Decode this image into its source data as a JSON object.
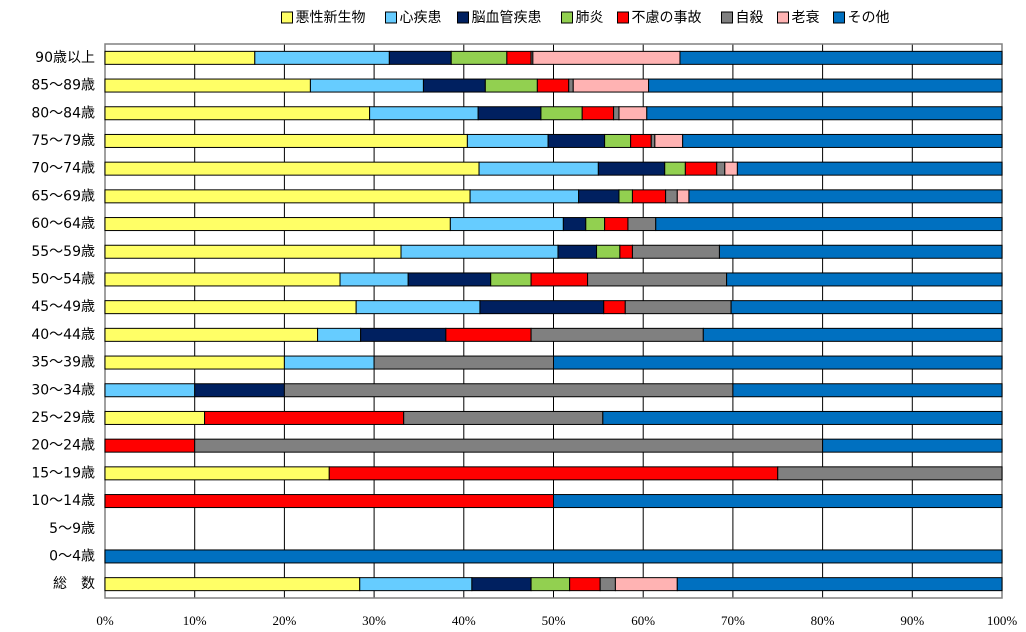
{
  "chart_data": {
    "type": "stacked-bar-horizontal",
    "categories": [
      "90歳以上",
      "85～89歳",
      "80～84歳",
      "75～79歳",
      "70～74歳",
      "65～69歳",
      "60～64歳",
      "55～59歳",
      "50～54歳",
      "45～49歳",
      "40～44歳",
      "35～39歳",
      "30～34歳",
      "25～29歳",
      "20～24歳",
      "15～19歳",
      "10～14歳",
      "5～9歳",
      "0～4歳",
      "総　数"
    ],
    "series": [
      {
        "name": "悪性新生物",
        "color": "#ffff66",
        "values": [
          16.7,
          22.9,
          29.5,
          40.4,
          41.7,
          40.7,
          38.5,
          33.0,
          26.2,
          28.0,
          23.7,
          20,
          0,
          11.1,
          0,
          25,
          0,
          0,
          0,
          28.4
        ]
      },
      {
        "name": "心疾患",
        "color": "#66ccff",
        "values": [
          15.0,
          12.6,
          12.1,
          9.0,
          13.3,
          12.1,
          12.6,
          17.5,
          7.6,
          13.8,
          4.8,
          10,
          10,
          0,
          0,
          0,
          0,
          0,
          0,
          12.5
        ]
      },
      {
        "name": "脳血管疾患",
        "color": "#002060",
        "values": [
          6.9,
          6.9,
          7.0,
          6.3,
          7.4,
          4.5,
          2.5,
          4.3,
          9.2,
          13.8,
          9.5,
          0,
          10,
          0,
          0,
          0,
          0,
          0,
          0,
          6.6
        ]
      },
      {
        "name": "肺炎",
        "color": "#92d050",
        "values": [
          6.2,
          5.8,
          4.6,
          2.9,
          2.3,
          1.5,
          2.1,
          2.6,
          4.5,
          0,
          0,
          0,
          0,
          0,
          0,
          0,
          0,
          0,
          0,
          4.3
        ]
      },
      {
        "name": "不慮の事故",
        "color": "#ff0000",
        "values": [
          2.7,
          3.5,
          3.5,
          2.3,
          3.5,
          3.7,
          2.6,
          1.4,
          6.3,
          2.4,
          9.5,
          0,
          0,
          22.2,
          10,
          50,
          50,
          0,
          0,
          3.4
        ]
      },
      {
        "name": "自殺",
        "color": "#808080",
        "values": [
          0.2,
          0.5,
          0.6,
          0.4,
          0.9,
          1.3,
          3.1,
          9.7,
          15.5,
          11.8,
          19.2,
          20,
          50,
          22.2,
          70,
          25,
          0,
          0,
          0,
          1.7
        ]
      },
      {
        "name": "老衰",
        "color": "#ffb3b3",
        "values": [
          16.4,
          8.4,
          3.1,
          3.1,
          1.4,
          1.3,
          0,
          0,
          0,
          0,
          0,
          0,
          0,
          0,
          0,
          0,
          0,
          0,
          0,
          6.9
        ]
      },
      {
        "name": "その他",
        "color": "#0070c0",
        "values": [
          35.9,
          39.4,
          39.6,
          35.6,
          29.5,
          34.9,
          38.6,
          31.5,
          30.7,
          30.2,
          33.3,
          50,
          30,
          44.5,
          20,
          0,
          50,
          0,
          100,
          36.2
        ]
      }
    ],
    "xlim": [
      0,
      100
    ],
    "xticks": [
      {
        "value": 0,
        "label": "0%"
      },
      {
        "value": 10,
        "label": "10%"
      },
      {
        "value": 20,
        "label": "20%"
      },
      {
        "value": 30,
        "label": "30%"
      },
      {
        "value": 40,
        "label": "40%"
      },
      {
        "value": 50,
        "label": "50%"
      },
      {
        "value": 60,
        "label": "60%"
      },
      {
        "value": 70,
        "label": "70%"
      },
      {
        "value": 80,
        "label": "80%"
      },
      {
        "value": 90,
        "label": "90%"
      },
      {
        "value": 100,
        "label": "100%"
      }
    ],
    "grid": true,
    "legend": "top"
  }
}
